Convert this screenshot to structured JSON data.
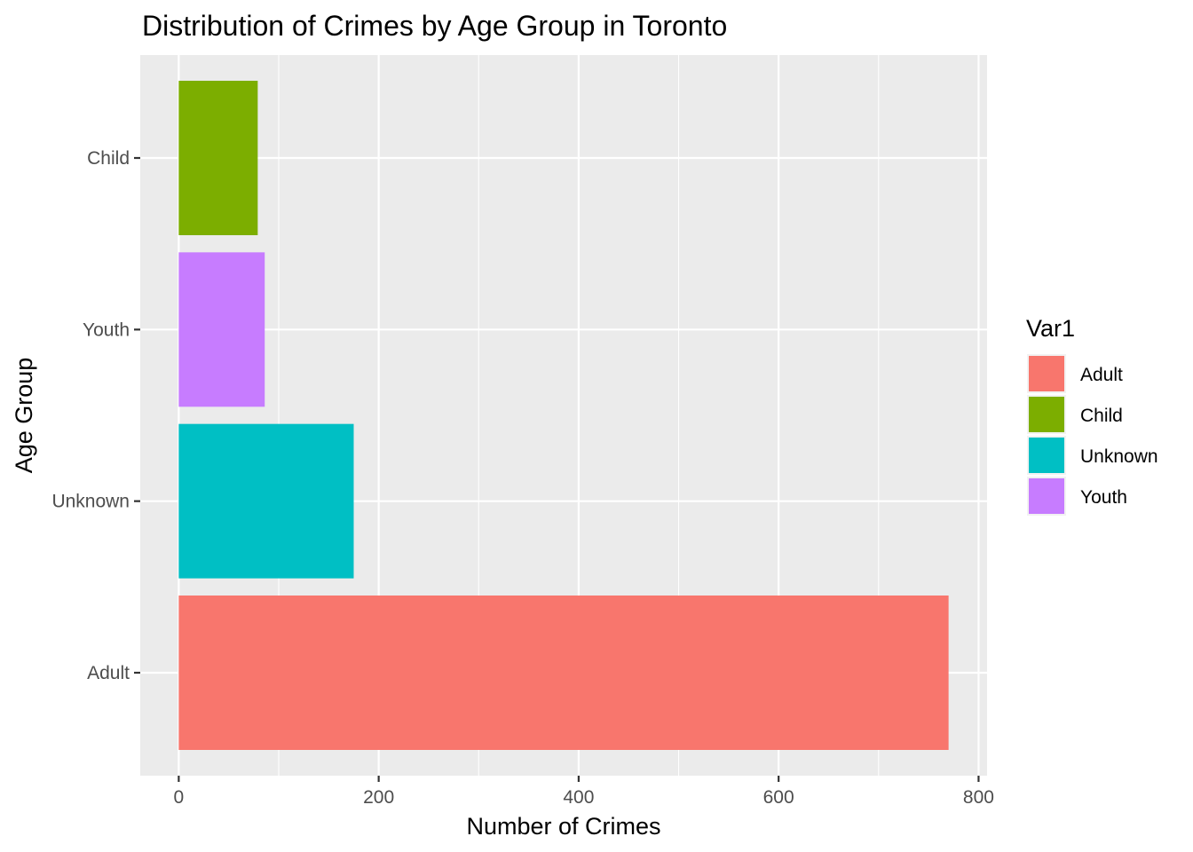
{
  "chart_data": {
    "type": "bar",
    "orientation": "horizontal",
    "title": "Distribution of Crimes by Age Group in Toronto",
    "xlabel": "Number of Crimes",
    "ylabel": "Age Group",
    "categories": [
      "Adult",
      "Unknown",
      "Youth",
      "Child"
    ],
    "values": [
      770,
      175,
      86,
      79
    ],
    "colors": [
      "#F8766D",
      "#00BFC4",
      "#C77CFF",
      "#7CAE00"
    ],
    "xlim": [
      -38.5,
      808.5
    ],
    "xticks": [
      0,
      200,
      400,
      600,
      800
    ],
    "grid": true,
    "legend": {
      "title": "Var1",
      "position": "right",
      "items": [
        {
          "label": "Adult",
          "color": "#F8766D"
        },
        {
          "label": "Child",
          "color": "#7CAE00"
        },
        {
          "label": "Unknown",
          "color": "#00BFC4"
        },
        {
          "label": "Youth",
          "color": "#C77CFF"
        }
      ]
    }
  }
}
